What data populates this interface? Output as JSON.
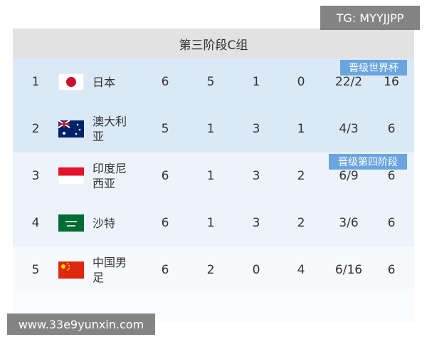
{
  "watermark_top": "TG: MYYJJPP",
  "table": {
    "title": "第三阶段C组",
    "rows": [
      [
        1,
        "日本",
        6,
        5,
        1,
        0,
        "22/2",
        16
      ],
      [
        2,
        "澳大利亚",
        5,
        1,
        3,
        1,
        "4/3",
        6
      ],
      [
        3,
        "印度尼西亚",
        6,
        1,
        3,
        2,
        "6/9",
        6
      ],
      [
        4,
        "沙特",
        6,
        1,
        3,
        2,
        "3/6",
        6
      ],
      [
        5,
        "中国男足",
        6,
        2,
        0,
        4,
        "6/16",
        6
      ]
    ]
  },
  "badges": [
    "晋级世界杯",
    "晋级第四阶段"
  ],
  "watermark_bottom": "www.33e9yunxin.com"
}
